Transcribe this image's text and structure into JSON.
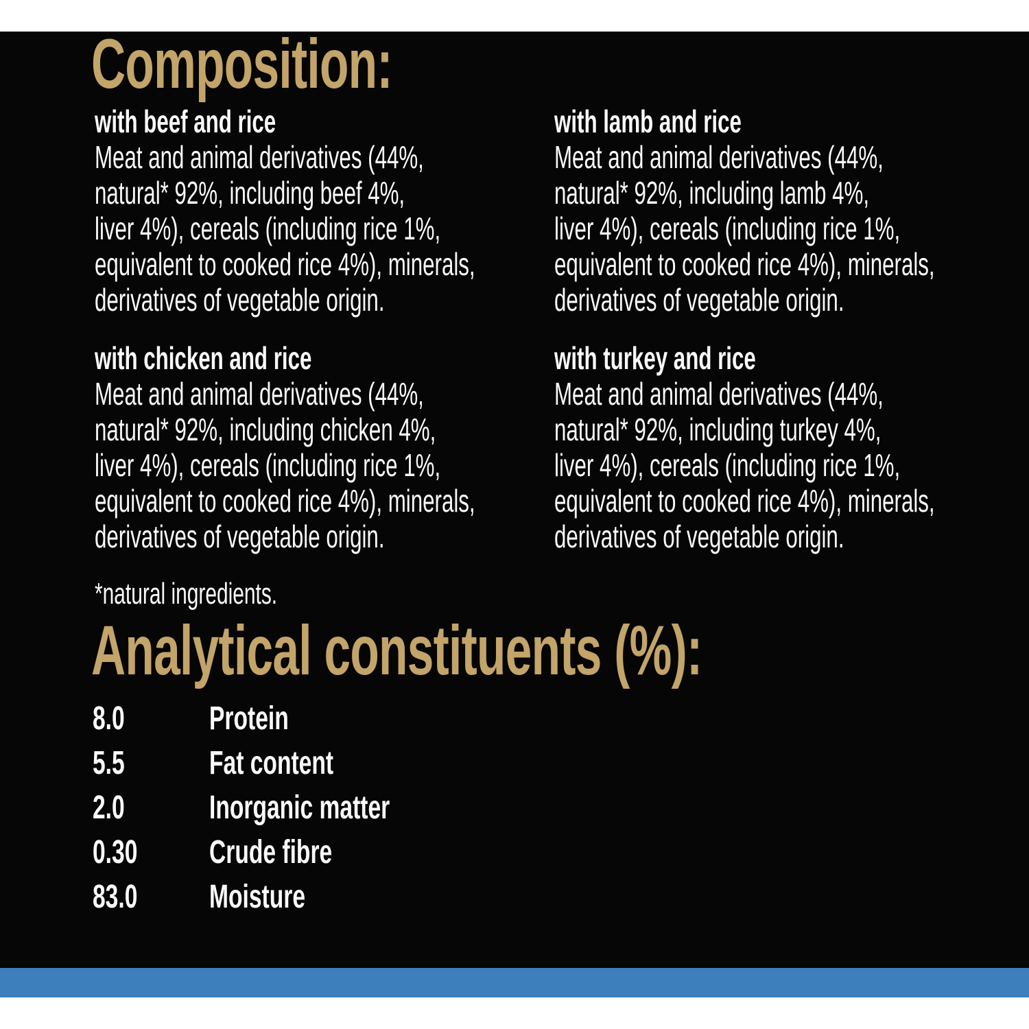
{
  "page": {
    "colors": {
      "background": "#060606",
      "top_band": "#ffffff",
      "bottom_bar_blue": "#3d7ebc",
      "bottom_band": "#ffffff",
      "accent_gold": "#c3a469",
      "text": "#fafafa"
    }
  },
  "composition": {
    "title": "Composition:",
    "footnote": "*natural ingredients.",
    "blocks": [
      {
        "id": "beef",
        "heading": "with beef and rice",
        "body": "Meat and animal derivatives (44%,\nnatural* 92%, including beef 4%,\nliver 4%), cereals (including rice 1%,\nequivalent to cooked rice 4%), minerals,\nderivatives of vegetable origin."
      },
      {
        "id": "lamb",
        "heading": "with lamb and rice",
        "body": "Meat and animal derivatives (44%,\nnatural* 92%, including lamb 4%,\nliver 4%), cereals (including rice 1%,\nequivalent to cooked rice 4%), minerals,\nderivatives of vegetable origin."
      },
      {
        "id": "chicken",
        "heading": "with chicken and rice",
        "body": "Meat and animal derivatives (44%,\nnatural* 92%, including chicken 4%,\nliver 4%), cereals (including rice 1%,\nequivalent to cooked rice 4%), minerals,\nderivatives of vegetable origin."
      },
      {
        "id": "turkey",
        "heading": "with turkey and rice",
        "body": "Meat and animal derivatives (44%,\nnatural* 92%, including turkey 4%,\nliver 4%), cereals (including rice 1%,\nequivalent to cooked rice 4%), minerals,\nderivatives of vegetable origin."
      }
    ]
  },
  "analytical": {
    "title": "Analytical constituents (%):",
    "rows": [
      {
        "value": "8.0",
        "label": "Protein"
      },
      {
        "value": "5.5",
        "label": "Fat content"
      },
      {
        "value": "2.0",
        "label": "Inorganic matter"
      },
      {
        "value": "0.30",
        "label": "Crude fibre"
      },
      {
        "value": "83.0",
        "label": "Moisture"
      }
    ]
  }
}
